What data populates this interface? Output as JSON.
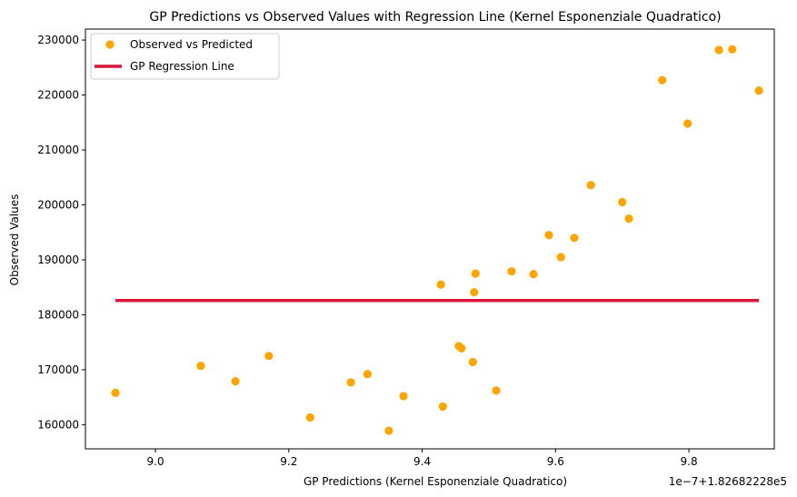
{
  "chart_data": {
    "type": "scatter",
    "title": "GP Predictions vs Observed Values with Regression Line (Kernel Esponenziale Quadratico)",
    "xlabel": "GP Predictions (Kernel Esponenziale Quadratico)",
    "ylabel": "Observed Values",
    "x_offset_text": "1e−7+1.82682228e5",
    "xlim": [
      8.895,
      9.928
    ],
    "ylim": [
      155600,
      232000
    ],
    "x_ticks": [
      9.0,
      9.2,
      9.4,
      9.6,
      9.8
    ],
    "x_tick_labels": [
      "9.0",
      "9.2",
      "9.4",
      "9.6",
      "9.8"
    ],
    "y_ticks": [
      160000,
      170000,
      180000,
      190000,
      200000,
      210000,
      220000,
      230000
    ],
    "y_tick_labels": [
      "160000",
      "170000",
      "180000",
      "190000",
      "200000",
      "210000",
      "220000",
      "230000"
    ],
    "grid": false,
    "legend_position": "upper-left",
    "series": [
      {
        "name": "Observed vs Predicted",
        "kind": "scatter",
        "color": "#FFA500",
        "points": [
          [
            8.94,
            165800
          ],
          [
            9.068,
            170700
          ],
          [
            9.12,
            167900
          ],
          [
            9.17,
            172500
          ],
          [
            9.232,
            161300
          ],
          [
            9.293,
            167700
          ],
          [
            9.318,
            169200
          ],
          [
            9.35,
            158900
          ],
          [
            9.372,
            165200
          ],
          [
            9.428,
            185500
          ],
          [
            9.431,
            163300
          ],
          [
            9.455,
            174300
          ],
          [
            9.459,
            173900
          ],
          [
            9.476,
            171400
          ],
          [
            9.478,
            184100
          ],
          [
            9.48,
            187500
          ],
          [
            9.511,
            166200
          ],
          [
            9.534,
            187900
          ],
          [
            9.567,
            187400
          ],
          [
            9.59,
            194500
          ],
          [
            9.608,
            190500
          ],
          [
            9.628,
            194000
          ],
          [
            9.653,
            203600
          ],
          [
            9.7,
            200500
          ],
          [
            9.71,
            197500
          ],
          [
            9.76,
            222700
          ],
          [
            9.798,
            214800
          ],
          [
            9.845,
            228200
          ],
          [
            9.865,
            228300
          ],
          [
            9.905,
            220800
          ]
        ]
      },
      {
        "name": "GP Regression Line",
        "kind": "line",
        "color": "#DC143C",
        "points": [
          [
            8.94,
            182600
          ],
          [
            9.905,
            182600
          ]
        ]
      }
    ]
  }
}
